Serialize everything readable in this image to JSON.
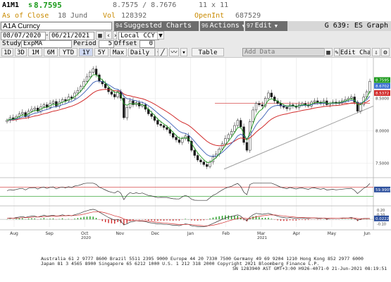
{
  "quote": {
    "ticker": "A1M1",
    "last_prefix": "s",
    "last": "8.7595",
    "bid_ask": "8.7575 / 8.7676",
    "size": "11 x 11",
    "asof_label": "As of Close",
    "asof_date": "18 Jund",
    "vol_label": "Vol",
    "vol": "128392",
    "oi_label": "OpenInt",
    "oi": "687529"
  },
  "menubar": {
    "security": "A1A Curncy",
    "suggested_num": "94",
    "suggested": "Suggested Charts",
    "actions_num": "96",
    "actions": "Actions",
    "edit_num": "97",
    "edit": "Edit",
    "graph": "G 639: ES Graph"
  },
  "controls": {
    "date_from": "08/07/2020",
    "date_to": "06/21/2021",
    "currency": "Local CCY",
    "study_label": "Study",
    "study_value": "ExpMA",
    "period_label": "Period",
    "period_value": "5",
    "offset_label": "Offset",
    "offset_value": "0"
  },
  "toolbar": {
    "ranges": [
      "1D",
      "3D",
      "1M",
      "6M",
      "YTD",
      "1Y",
      "5Y",
      "Max"
    ],
    "selected_range": "1Y",
    "frequency": "Daily",
    "table": "Table",
    "add_data": "Add Data",
    "edit_chart": "Edit Chart"
  },
  "chart_data": {
    "type": "line",
    "x_labels": [
      "Aug",
      "Sep",
      "Oct",
      "Nov",
      "Dec",
      "Jan",
      "Feb",
      "Mar",
      "Apr",
      "May",
      "Jun"
    ],
    "year_labels": [
      "2020",
      "2021"
    ],
    "price_ticks": [
      "8.5000",
      "8.0000",
      "7.5000"
    ],
    "osc_ticks": [
      "59.9905"
    ],
    "macd_ticks": [
      "0.20",
      "0.10",
      "0.0222",
      "-0.10"
    ],
    "price_badges": [
      {
        "value": "8.7595",
        "color": "#1c9a1c"
      },
      {
        "value": "8.6702",
        "color": "#3a6fd1"
      },
      {
        "value": "8.5372",
        "color": "#d12a2a"
      }
    ],
    "osc_badge": "59.9905",
    "macd_badge": "0.0222",
    "colors": {
      "ema_fast": "#1c9a1c",
      "ema_mid": "#3b5fb5",
      "ema_slow": "#d12a2a",
      "support": "#a0a0a0",
      "up": "#1c9a1c",
      "down": "#d12a2a"
    },
    "close": [
      8.16,
      8.2,
      8.18,
      8.22,
      8.26,
      8.28,
      8.22,
      8.3,
      8.33,
      8.35,
      8.3,
      8.37,
      8.4,
      8.36,
      8.42,
      8.45,
      8.38,
      8.44,
      8.48,
      8.46,
      8.52,
      8.5,
      8.58,
      8.62,
      8.68,
      8.76,
      8.83,
      8.9,
      8.95,
      8.86,
      8.76,
      8.72,
      8.66,
      8.6,
      8.56,
      8.52,
      8.6,
      8.5,
      8.2,
      8.36,
      8.46,
      8.4,
      8.43,
      8.38,
      8.4,
      8.33,
      8.26,
      8.22,
      8.16,
      8.1,
      8.08,
      8.05,
      8.02,
      7.96,
      7.9,
      7.86,
      7.82,
      7.88,
      7.92,
      7.84,
      7.7,
      7.62,
      7.55,
      7.52,
      7.48,
      7.45,
      7.52,
      7.6,
      7.64,
      7.72,
      7.8,
      7.88,
      7.94,
      7.99,
      8.08,
      8.16,
      8.06,
      7.82,
      7.7,
      8.14,
      8.32,
      8.42,
      8.4,
      8.38,
      8.5,
      8.58,
      8.52,
      8.46,
      8.42,
      8.38,
      8.36,
      8.34,
      8.4,
      8.38,
      8.36,
      8.4,
      8.42,
      8.4,
      8.38,
      8.44,
      8.46,
      8.44,
      8.42,
      8.46,
      8.4,
      8.42,
      8.44,
      8.42,
      8.44,
      8.46,
      8.48,
      8.5,
      8.52,
      8.44,
      8.3,
      8.4,
      8.52,
      8.6,
      8.76
    ],
    "macd": [
      0.02,
      0.03,
      0.02,
      0.04,
      0.05,
      0.06,
      0.04,
      0.06,
      0.07,
      0.07,
      0.05,
      0.07,
      0.09,
      0.07,
      0.08,
      0.09,
      0.07,
      0.08,
      0.1,
      0.08,
      0.09,
      0.08,
      0.1,
      0.12,
      0.14,
      0.17,
      0.19,
      0.21,
      0.22,
      0.2,
      0.16,
      0.12,
      0.08,
      0.04,
      0.01,
      -0.02,
      0.0,
      -0.04,
      -0.12,
      -0.1,
      -0.06,
      -0.05,
      -0.03,
      -0.04,
      -0.04,
      -0.05,
      -0.07,
      -0.08,
      -0.09,
      -0.1,
      -0.1,
      -0.11,
      -0.11,
      -0.12,
      -0.13,
      -0.13,
      -0.14,
      -0.12,
      -0.1,
      -0.11,
      -0.14,
      -0.15,
      -0.16,
      -0.16,
      -0.16,
      -0.15,
      -0.12,
      -0.09,
      -0.06,
      -0.03,
      0.0,
      0.03,
      0.05,
      0.06,
      0.08,
      0.1,
      0.07,
      0.01,
      -0.03,
      0.05,
      0.1,
      0.13,
      0.12,
      0.11,
      0.12,
      0.13,
      0.11,
      0.09,
      0.07,
      0.05,
      0.04,
      0.03,
      0.04,
      0.03,
      0.02,
      0.03,
      0.03,
      0.02,
      0.02,
      0.03,
      0.03,
      0.02,
      0.02,
      0.03,
      0.01,
      0.02,
      0.02,
      0.02,
      0.02,
      0.03,
      0.03,
      0.03,
      0.04,
      0.02,
      -0.02,
      0.0,
      0.02,
      0.02,
      0.02
    ]
  },
  "footer": {
    "line1": "Australia 61 2 9777 8600 Brazil 5511 2395 9000 Europe 44 20 7330 7500 Germany 49 69 9204 1210 Hong Kong 852 2977 6000",
    "line2": "Japan 81 3 4565 8900          Singapore 65 6212 1000    U.S. 1 212 318 2000      Copyright 2021 Bloomberg Finance L.P.",
    "line3": "SN 1283940 AST  GMT+3:00 H926-4071-0 21-Jun-2021 08:19:51"
  }
}
